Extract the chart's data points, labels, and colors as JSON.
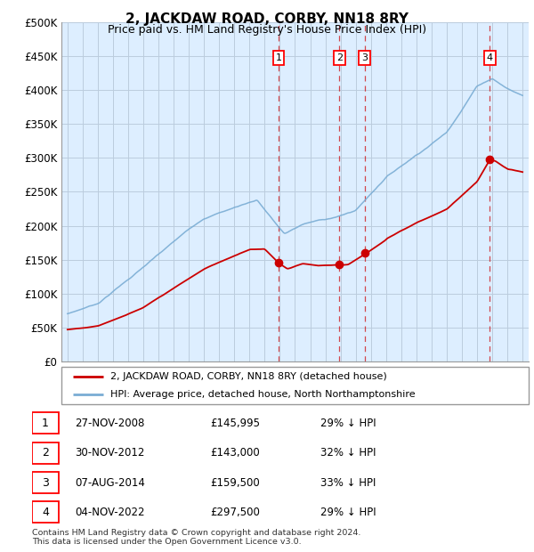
{
  "title": "2, JACKDAW ROAD, CORBY, NN18 8RY",
  "subtitle": "Price paid vs. HM Land Registry's House Price Index (HPI)",
  "ylabel_ticks": [
    "£0",
    "£50K",
    "£100K",
    "£150K",
    "£200K",
    "£250K",
    "£300K",
    "£350K",
    "£400K",
    "£450K",
    "£500K"
  ],
  "ytick_values": [
    0,
    50000,
    100000,
    150000,
    200000,
    250000,
    300000,
    350000,
    400000,
    450000,
    500000
  ],
  "ylim": [
    0,
    500000
  ],
  "xlim_start": 1994.6,
  "xlim_end": 2025.4,
  "transactions": [
    {
      "label": "1",
      "date": 2008.92,
      "price": 145995
    },
    {
      "label": "2",
      "date": 2012.92,
      "price": 143000
    },
    {
      "label": "3",
      "date": 2014.58,
      "price": 159500
    },
    {
      "label": "4",
      "date": 2022.83,
      "price": 297500
    }
  ],
  "transaction_table": [
    {
      "num": "1",
      "date": "27-NOV-2008",
      "price": "£145,995",
      "note": "29% ↓ HPI"
    },
    {
      "num": "2",
      "date": "30-NOV-2012",
      "price": "£143,000",
      "note": "32% ↓ HPI"
    },
    {
      "num": "3",
      "date": "07-AUG-2014",
      "price": "£159,500",
      "note": "33% ↓ HPI"
    },
    {
      "num": "4",
      "date": "04-NOV-2022",
      "price": "£297,500",
      "note": "29% ↓ HPI"
    }
  ],
  "legend_line1": "2, JACKDAW ROAD, CORBY, NN18 8RY (detached house)",
  "legend_line2": "HPI: Average price, detached house, North Northamptonshire",
  "footnote": "Contains HM Land Registry data © Crown copyright and database right 2024.\nThis data is licensed under the Open Government Licence v3.0.",
  "red_color": "#cc0000",
  "blue_color": "#7aadd4",
  "vline_color": "#cc0000",
  "chart_bg": "#ddeeff",
  "plot_bg": "#ffffff",
  "grid_color": "#bbccdd"
}
